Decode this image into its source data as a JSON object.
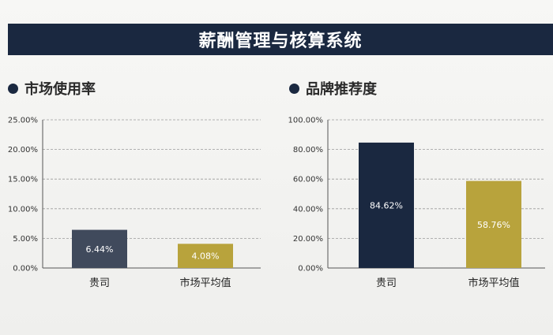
{
  "header": {
    "title": "薪酬管理与核算系统"
  },
  "colors": {
    "banner": "#1a2840",
    "primary_bar": "#1a2840",
    "company_bar_left": "#404a5c",
    "market_bar": "#b8a33c",
    "grid": "#9a9a9a",
    "axis": "#555555"
  },
  "chart_data": [
    {
      "type": "bar",
      "title": "市场使用率",
      "categories": [
        "贵司",
        "市场平均值"
      ],
      "values": [
        6.44,
        4.08
      ],
      "value_labels": [
        "6.44%",
        "4.08%"
      ],
      "ylim": [
        0,
        25
      ],
      "yticks": [
        0,
        5,
        10,
        15,
        20,
        25
      ],
      "ytick_labels": [
        "0.00%",
        "5.00%",
        "10.00%",
        "15.00%",
        "20.00%",
        "25.00%"
      ],
      "xlabel": "",
      "ylabel": "",
      "grid": "horizontal dashed"
    },
    {
      "type": "bar",
      "title": "品牌推荐度",
      "categories": [
        "贵司",
        "市场平均值"
      ],
      "values": [
        84.62,
        58.76
      ],
      "value_labels": [
        "84.62%",
        "58.76%"
      ],
      "ylim": [
        0,
        100
      ],
      "yticks": [
        0,
        20,
        40,
        60,
        80,
        100
      ],
      "ytick_labels": [
        "0.00%",
        "20.00%",
        "40.00%",
        "60.00%",
        "80.00%",
        "100.00%"
      ],
      "xlabel": "",
      "ylabel": "",
      "grid": "horizontal dashed"
    }
  ]
}
